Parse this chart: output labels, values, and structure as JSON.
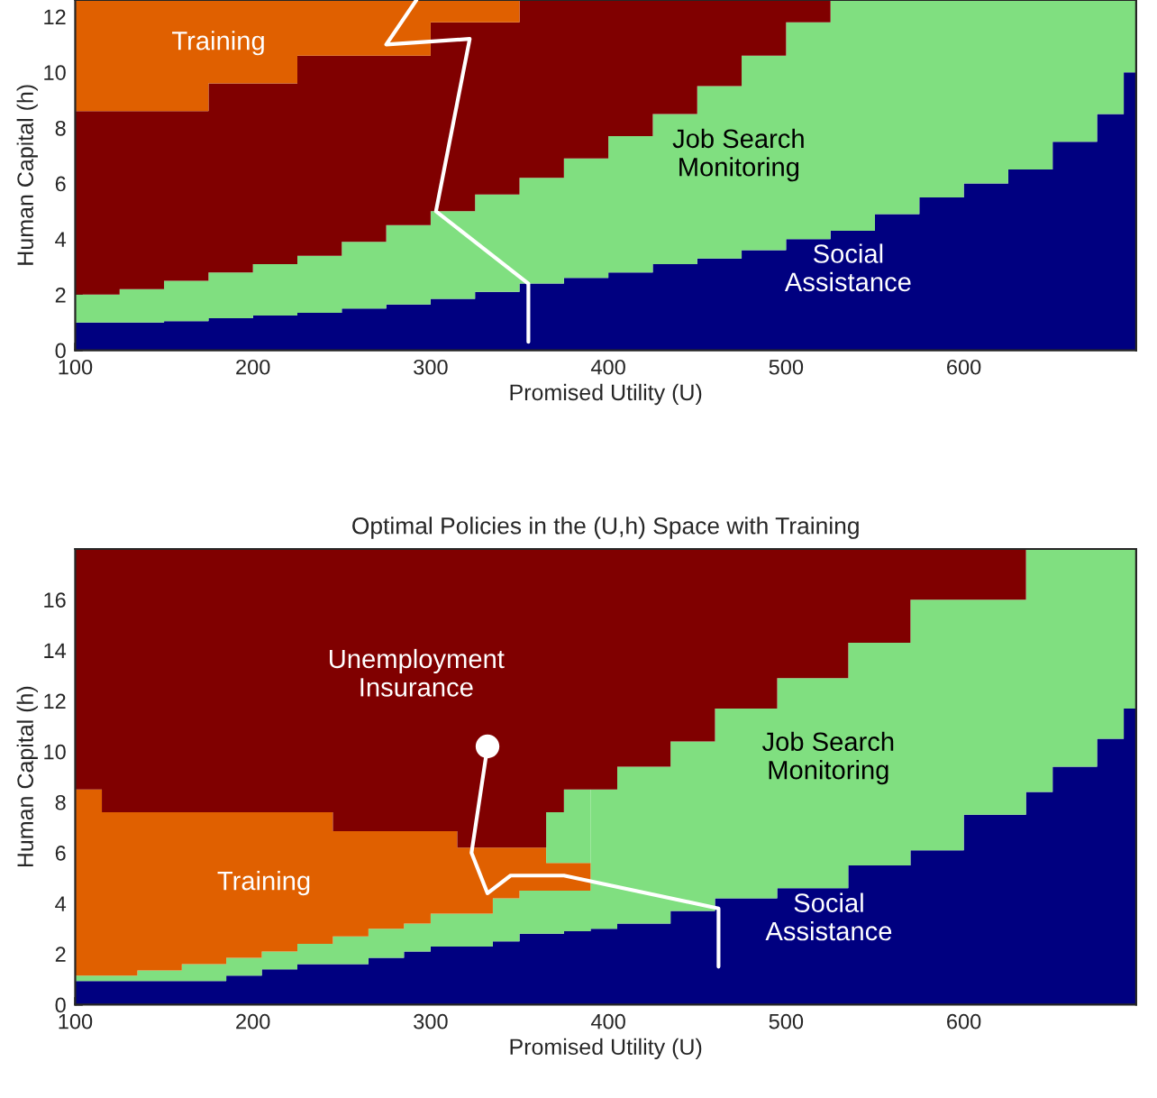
{
  "chart_data": [
    {
      "type": "area",
      "stacked": true,
      "xlabel": "Promised Utility (U)",
      "ylabel": "Human Capital (h)",
      "x": [
        100,
        125,
        150,
        175,
        200,
        225,
        250,
        275,
        300,
        325,
        350,
        375,
        400,
        425,
        450,
        475,
        500,
        525,
        550,
        575,
        600,
        625,
        650,
        675,
        690,
        697
      ],
      "series": [
        {
          "name": "Social Assistance",
          "color": "#000080",
          "values": [
            1.0,
            1.0,
            1.05,
            1.15,
            1.25,
            1.35,
            1.5,
            1.65,
            1.85,
            2.1,
            2.4,
            2.6,
            2.8,
            3.1,
            3.3,
            3.6,
            4.0,
            4.3,
            4.9,
            5.5,
            6.0,
            6.5,
            7.5,
            8.5,
            10.0,
            10.0
          ]
        },
        {
          "name": "Job Search Monitoring",
          "color": "#80df80",
          "values": [
            1.0,
            1.2,
            1.45,
            1.65,
            1.85,
            2.05,
            2.4,
            2.85,
            3.15,
            3.5,
            3.8,
            4.3,
            4.9,
            5.4,
            6.2,
            7.0,
            7.8,
            8.3,
            7.7,
            7.1,
            6.6,
            6.1,
            5.1,
            4.1,
            2.6,
            2.6
          ]
        },
        {
          "color": "#800000",
          "values": [
            6.6,
            6.4,
            6.1,
            6.8,
            6.5,
            7.2,
            6.7,
            6.1,
            6.8,
            6.2,
            6.4,
            5.7,
            4.9,
            4.1,
            3.1,
            2.0,
            0.8,
            0,
            0,
            0,
            0,
            0,
            0,
            0,
            0,
            0
          ]
        },
        {
          "name": "Training",
          "color": "#e06000",
          "values": [
            4.0,
            4.0,
            4.0,
            3.0,
            3.0,
            2.0,
            2.0,
            2.0,
            0.8,
            0.8,
            0,
            0,
            0,
            0,
            0,
            0,
            0,
            0,
            0,
            0,
            0,
            0,
            0,
            0,
            0,
            0
          ]
        },
        {
          "type": "line",
          "color": "#ffffff",
          "x": [
            292,
            275,
            322,
            303,
            355,
            355
          ],
          "values": [
            12.6,
            11.0,
            11.2,
            5.0,
            2.4,
            0.3
          ]
        }
      ],
      "xlim": [
        100,
        697
      ],
      "ylim": [
        0,
        12.6
      ],
      "xticks": [
        100,
        200,
        300,
        400,
        500,
        600
      ],
      "yticks": [
        0,
        2,
        4,
        6,
        8,
        10,
        12
      ]
    },
    {
      "type": "area",
      "stacked": true,
      "title": "Optimal Policies in the (U,h) Space with Training",
      "xlabel": "Promised Utility (U)",
      "ylabel": "Human Capital (h)",
      "x": [
        100,
        115,
        135,
        160,
        185,
        205,
        225,
        245,
        265,
        285,
        300,
        315,
        335,
        350,
        365,
        375,
        390,
        405,
        435,
        460,
        495,
        535,
        570,
        600,
        635,
        650,
        675,
        690,
        697
      ],
      "series": [
        {
          "name": "Social Assistance",
          "color": "#000080",
          "values": [
            0.93,
            0.93,
            0.93,
            0.93,
            1.15,
            1.4,
            1.6,
            1.6,
            1.85,
            2.1,
            2.3,
            2.3,
            2.5,
            2.8,
            2.8,
            2.9,
            3.0,
            3.2,
            3.7,
            4.2,
            4.6,
            5.5,
            6.1,
            7.5,
            8.4,
            9.4,
            10.5,
            11.7,
            11.7
          ]
        },
        {
          "name": "Job Search Monitoring",
          "color": "#80df80",
          "values": [
            0.22,
            0.22,
            0.42,
            0.67,
            0.7,
            0.7,
            0.8,
            1.1,
            1.15,
            1.1,
            1.3,
            1.3,
            1.7,
            1.7,
            1.7,
            1.6,
            5.5,
            6.2,
            6.7,
            7.5,
            8.3,
            8.8,
            9.9,
            8.5,
            9.6,
            8.6,
            7.5,
            6.3,
            6.3
          ]
        },
        {
          "name": "Training",
          "color": "#e06000",
          "values": [
            7.35,
            6.45,
            6.25,
            6.0,
            5.75,
            5.5,
            5.2,
            4.15,
            3.85,
            3.65,
            3.25,
            2.6,
            2.0,
            1.7,
            1.1,
            1.1,
            0,
            0,
            0,
            0,
            0,
            0,
            0,
            0,
            0,
            0,
            0,
            0,
            0
          ]
        },
        {
          "color": "#80df80",
          "values": [
            0,
            0,
            0,
            0,
            0,
            0,
            0,
            0,
            0,
            0,
            0,
            0,
            0,
            0,
            2.0,
            2.9,
            0,
            0,
            0,
            0,
            0,
            0,
            0,
            0,
            0,
            0,
            0,
            0,
            0
          ]
        },
        {
          "name": "Unemployment Insurance",
          "color": "#800000",
          "values": [
            9.5,
            10.4,
            10.4,
            10.4,
            10.4,
            10.4,
            10.4,
            11.15,
            11.15,
            11.15,
            11.15,
            11.8,
            11.8,
            11.8,
            10.4,
            9.5,
            9.5,
            8.6,
            7.6,
            6.3,
            5.1,
            3.7,
            2.0,
            2.0,
            0,
            0,
            0,
            0,
            0
          ]
        },
        {
          "type": "line",
          "color": "#ffffff",
          "x": [
            332,
            323,
            332,
            345,
            375,
            462,
            462
          ],
          "values": [
            10.2,
            6.0,
            4.4,
            5.1,
            5.1,
            3.8,
            1.5
          ]
        },
        {
          "type": "scatter",
          "color": "#ffffff",
          "x": [
            332
          ],
          "values": [
            10.2
          ]
        }
      ],
      "xlim": [
        100,
        697
      ],
      "ylim": [
        0,
        18
      ],
      "xticks": [
        100,
        200,
        300,
        400,
        500,
        600
      ],
      "yticks": [
        0,
        2,
        4,
        6,
        8,
        10,
        12,
        14,
        16
      ]
    }
  ]
}
